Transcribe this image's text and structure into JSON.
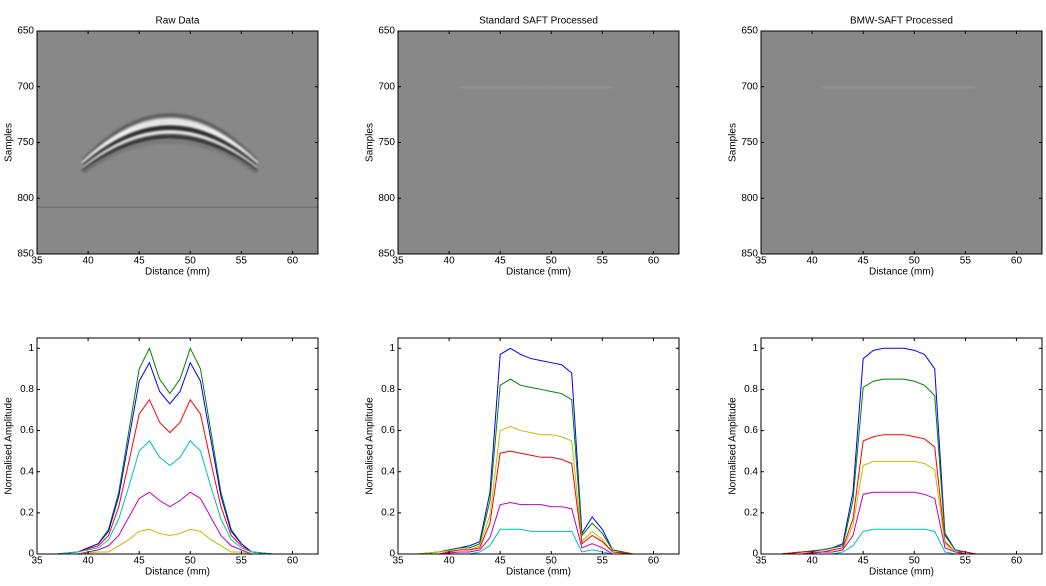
{
  "chart_data": [
    {
      "type": "image",
      "title": "Raw Data",
      "xlabel": "Distance (mm)",
      "ylabel": "Samples",
      "xlim": [
        35,
        62.5
      ],
      "ylim": [
        650,
        850
      ],
      "y_reversed": true,
      "xticks": [
        35,
        40,
        45,
        50,
        55,
        60
      ],
      "yticks": [
        650,
        700,
        750,
        800,
        850
      ]
    },
    {
      "type": "image",
      "title": "Standard SAFT Processed",
      "xlabel": "Distance (mm)",
      "ylabel": "Samples",
      "xlim": [
        35,
        62.5
      ],
      "ylim": [
        650,
        850
      ],
      "y_reversed": true,
      "xticks": [
        35,
        40,
        45,
        50,
        55,
        60
      ],
      "yticks": [
        650,
        700,
        750,
        800,
        850
      ]
    },
    {
      "type": "image",
      "title": "BMW-SAFT Processed",
      "xlabel": "Distance (mm)",
      "ylabel": "Samples",
      "xlim": [
        35,
        62.5
      ],
      "ylim": [
        650,
        850
      ],
      "y_reversed": true,
      "xticks": [
        35,
        40,
        45,
        50,
        55,
        60
      ],
      "yticks": [
        650,
        700,
        750,
        800,
        850
      ]
    },
    {
      "type": "line",
      "xlabel": "Distance (mm)",
      "ylabel": "Normalised Amplitude",
      "xlim": [
        35,
        62.5
      ],
      "ylim": [
        0,
        1.05
      ],
      "xticks": [
        35,
        40,
        45,
        50,
        55,
        60
      ],
      "yticks": [
        0,
        0.2,
        0.4,
        0.6,
        0.8,
        1
      ],
      "x": [
        35,
        37,
        39,
        41,
        42,
        43,
        44,
        45,
        46,
        47,
        48,
        49,
        50,
        51,
        52,
        53,
        54,
        55,
        56,
        58,
        60,
        62.5
      ],
      "series": [
        {
          "color": "#008000",
          "values": [
            0,
            0,
            0.01,
            0.05,
            0.12,
            0.3,
            0.6,
            0.9,
            1.0,
            0.85,
            0.78,
            0.85,
            1.0,
            0.9,
            0.6,
            0.3,
            0.12,
            0.05,
            0.01,
            0,
            0,
            0
          ]
        },
        {
          "color": "#0000ff",
          "values": [
            0,
            0,
            0.01,
            0.05,
            0.11,
            0.28,
            0.56,
            0.84,
            0.93,
            0.79,
            0.73,
            0.79,
            0.93,
            0.84,
            0.56,
            0.28,
            0.11,
            0.05,
            0.01,
            0,
            0,
            0
          ]
        },
        {
          "color": "#ff0000",
          "values": [
            0,
            0,
            0.01,
            0.04,
            0.09,
            0.23,
            0.45,
            0.68,
            0.75,
            0.64,
            0.59,
            0.64,
            0.75,
            0.68,
            0.45,
            0.23,
            0.09,
            0.04,
            0.01,
            0,
            0,
            0
          ]
        },
        {
          "color": "#00bfbf",
          "values": [
            0,
            0,
            0.01,
            0.03,
            0.07,
            0.17,
            0.33,
            0.5,
            0.55,
            0.47,
            0.43,
            0.47,
            0.55,
            0.5,
            0.33,
            0.17,
            0.07,
            0.03,
            0.01,
            0,
            0,
            0
          ]
        },
        {
          "color": "#bf00bf",
          "values": [
            0,
            0,
            0,
            0.02,
            0.04,
            0.09,
            0.18,
            0.27,
            0.3,
            0.26,
            0.23,
            0.26,
            0.3,
            0.27,
            0.18,
            0.09,
            0.04,
            0.02,
            0,
            0,
            0,
            0
          ]
        },
        {
          "color": "#bfbf00",
          "values": [
            0,
            0,
            0,
            0.01,
            0.01,
            0.04,
            0.07,
            0.11,
            0.12,
            0.1,
            0.09,
            0.1,
            0.12,
            0.11,
            0.07,
            0.04,
            0.01,
            0.01,
            0,
            0,
            0,
            0
          ]
        }
      ]
    },
    {
      "type": "line",
      "xlabel": "Distance (mm)",
      "ylabel": "Normalised Amplitude",
      "xlim": [
        35,
        62.5
      ],
      "ylim": [
        0,
        1.05
      ],
      "xticks": [
        35,
        40,
        45,
        50,
        55,
        60
      ],
      "yticks": [
        0,
        0.2,
        0.4,
        0.6,
        0.8,
        1
      ],
      "x": [
        35,
        37,
        39,
        41,
        42,
        43,
        44,
        45,
        46,
        47,
        48,
        49,
        50,
        51,
        52,
        53,
        54,
        55,
        56,
        58,
        60,
        62.5
      ],
      "series": [
        {
          "color": "#0000ff",
          "values": [
            0,
            0,
            0.01,
            0.03,
            0.04,
            0.06,
            0.3,
            0.97,
            1.0,
            0.97,
            0.95,
            0.94,
            0.93,
            0.92,
            0.88,
            0.1,
            0.18,
            0.12,
            0.02,
            0,
            0,
            0
          ]
        },
        {
          "color": "#008000",
          "values": [
            0,
            0,
            0.01,
            0.03,
            0.03,
            0.05,
            0.26,
            0.82,
            0.85,
            0.82,
            0.81,
            0.8,
            0.79,
            0.78,
            0.75,
            0.09,
            0.15,
            0.1,
            0.02,
            0,
            0,
            0
          ]
        },
        {
          "color": "#bfbf00",
          "values": [
            0,
            0,
            0.01,
            0.02,
            0.02,
            0.04,
            0.19,
            0.6,
            0.62,
            0.6,
            0.59,
            0.58,
            0.58,
            0.57,
            0.55,
            0.06,
            0.11,
            0.07,
            0.01,
            0,
            0,
            0
          ]
        },
        {
          "color": "#ff0000",
          "values": [
            0,
            0,
            0,
            0.02,
            0.02,
            0.03,
            0.15,
            0.49,
            0.5,
            0.49,
            0.48,
            0.47,
            0.47,
            0.46,
            0.44,
            0.05,
            0.09,
            0.06,
            0.01,
            0,
            0,
            0
          ]
        },
        {
          "color": "#bf00bf",
          "values": [
            0,
            0,
            0,
            0.01,
            0.01,
            0.02,
            0.08,
            0.24,
            0.25,
            0.24,
            0.24,
            0.24,
            0.23,
            0.23,
            0.22,
            0.03,
            0.05,
            0.03,
            0,
            0,
            0,
            0
          ]
        },
        {
          "color": "#00bfbf",
          "values": [
            0,
            0,
            0,
            0,
            0,
            0.01,
            0.04,
            0.12,
            0.12,
            0.12,
            0.11,
            0.11,
            0.11,
            0.11,
            0.11,
            0.01,
            0.02,
            0.01,
            0,
            0,
            0,
            0
          ]
        }
      ]
    },
    {
      "type": "line",
      "xlabel": "Distance (mm)",
      "ylabel": "Normalised Amplitude",
      "xlim": [
        35,
        62.5
      ],
      "ylim": [
        0,
        1.05
      ],
      "xticks": [
        35,
        40,
        45,
        50,
        55,
        60
      ],
      "yticks": [
        0,
        0.2,
        0.4,
        0.6,
        0.8,
        1
      ],
      "x": [
        35,
        37,
        39,
        41,
        42,
        43,
        44,
        45,
        46,
        47,
        48,
        49,
        50,
        51,
        52,
        53,
        54,
        55,
        56,
        58,
        60,
        62.5
      ],
      "series": [
        {
          "color": "#0000ff",
          "values": [
            0,
            0,
            0.01,
            0.02,
            0.03,
            0.05,
            0.3,
            0.95,
            0.99,
            1.0,
            1.0,
            1.0,
            0.99,
            0.97,
            0.9,
            0.1,
            0.02,
            0.01,
            0,
            0,
            0,
            0
          ]
        },
        {
          "color": "#008000",
          "values": [
            0,
            0,
            0.01,
            0.02,
            0.03,
            0.04,
            0.26,
            0.81,
            0.84,
            0.85,
            0.85,
            0.85,
            0.84,
            0.82,
            0.77,
            0.09,
            0.02,
            0.01,
            0,
            0,
            0,
            0
          ]
        },
        {
          "color": "#ff0000",
          "values": [
            0,
            0,
            0.01,
            0.01,
            0.02,
            0.03,
            0.17,
            0.55,
            0.57,
            0.58,
            0.58,
            0.58,
            0.57,
            0.56,
            0.52,
            0.06,
            0.01,
            0.01,
            0,
            0,
            0,
            0
          ]
        },
        {
          "color": "#bfbf00",
          "values": [
            0,
            0,
            0,
            0.01,
            0.01,
            0.02,
            0.14,
            0.43,
            0.45,
            0.45,
            0.45,
            0.45,
            0.45,
            0.44,
            0.41,
            0.05,
            0.01,
            0,
            0,
            0,
            0,
            0
          ]
        },
        {
          "color": "#bf00bf",
          "values": [
            0,
            0,
            0,
            0.01,
            0.01,
            0.02,
            0.09,
            0.29,
            0.3,
            0.3,
            0.3,
            0.3,
            0.3,
            0.29,
            0.27,
            0.03,
            0.01,
            0,
            0,
            0,
            0,
            0
          ]
        },
        {
          "color": "#00bfbf",
          "values": [
            0,
            0,
            0,
            0,
            0,
            0.01,
            0.04,
            0.11,
            0.12,
            0.12,
            0.12,
            0.12,
            0.12,
            0.12,
            0.11,
            0.01,
            0,
            0,
            0,
            0,
            0,
            0
          ]
        }
      ]
    }
  ]
}
